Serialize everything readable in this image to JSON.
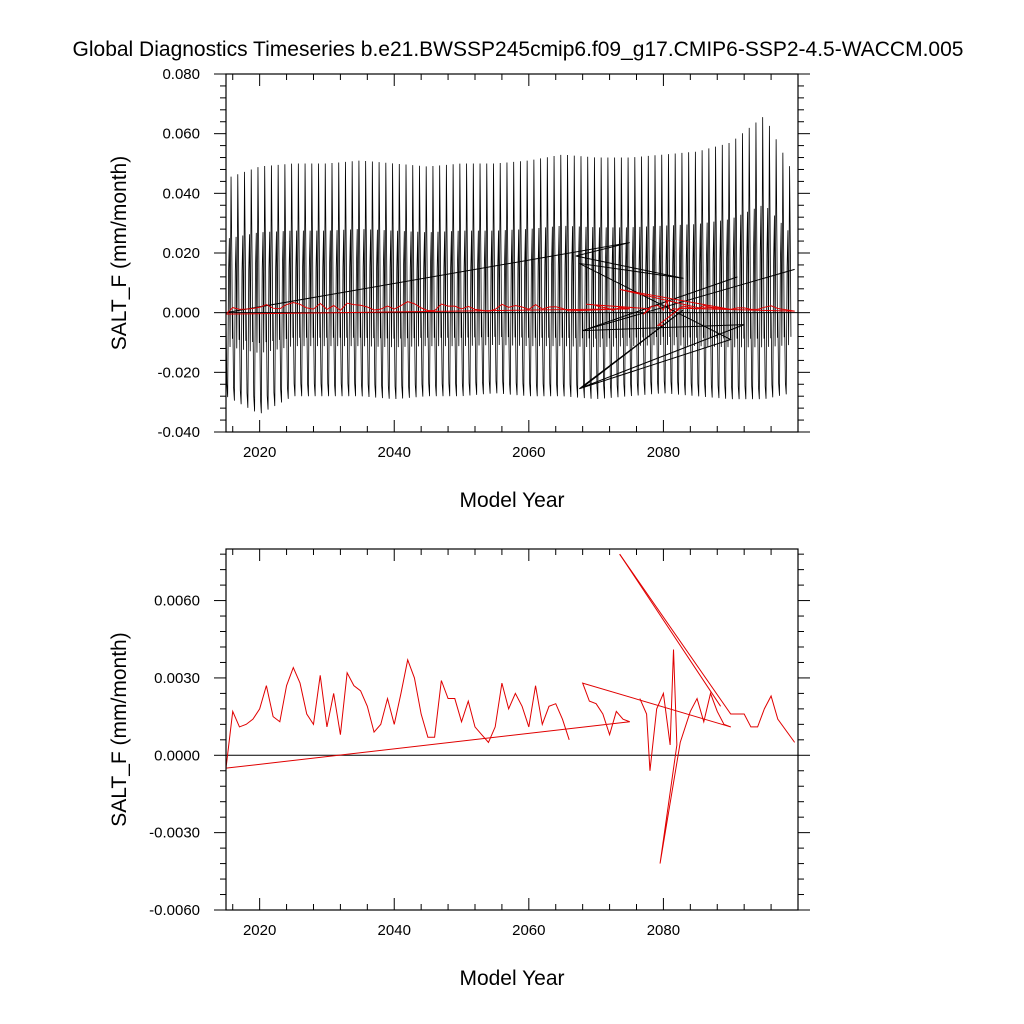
{
  "title": "Global Diagnostics Timeseries b.e21.BWSSP245cmip6.f09_g17.CMIP6-SSP2-4.5-WACCM.005",
  "colors": {
    "monthly": "#000000",
    "annual": "#e00000",
    "zero_line": "#000000"
  },
  "chart_data": [
    {
      "type": "line",
      "xlabel": "Model Year",
      "ylabel": "SALT_F (mm/month)",
      "xlim": [
        2015,
        2100
      ],
      "ylim": [
        -0.04,
        0.08
      ],
      "xticks": [
        2020,
        2040,
        2060,
        2080
      ],
      "xtick_labels": [
        "2020",
        "2040",
        "2060",
        "2080"
      ],
      "yticks": [
        -0.04,
        -0.02,
        0.0,
        0.02,
        0.04,
        0.06,
        0.08
      ],
      "ytick_labels": [
        "-0.040",
        "-0.020",
        "0.000",
        "0.020",
        "0.040",
        "0.060",
        "0.080"
      ],
      "grid": false,
      "reference_line_y": 0.0,
      "monthly_envelope": {
        "x": [
          2015,
          2020,
          2025,
          2030,
          2035,
          2040,
          2045,
          2050,
          2055,
          2060,
          2065,
          2070,
          2075,
          2080,
          2085,
          2090,
          2095,
          2099
        ],
        "max": [
          0.045,
          0.049,
          0.05,
          0.05,
          0.051,
          0.05,
          0.049,
          0.05,
          0.05,
          0.051,
          0.053,
          0.052,
          0.052,
          0.053,
          0.054,
          0.057,
          0.066,
          0.048
        ],
        "min": [
          -0.028,
          -0.034,
          -0.028,
          -0.028,
          -0.028,
          -0.029,
          -0.028,
          -0.028,
          -0.027,
          -0.028,
          -0.028,
          -0.029,
          -0.028,
          -0.027,
          -0.028,
          -0.029,
          -0.029,
          -0.027
        ]
      },
      "series": [
        {
          "kind": "monthly",
          "x": [
            2015.0,
            2075.0,
            2067.0,
            2083.0,
            2067.5,
            2090.0,
            2067.5,
            2083.0,
            2068.0,
            2092.0,
            2068.0,
            2091.0,
            2068.0,
            2099.5
          ],
          "y": [
            0.0,
            0.0235,
            0.019,
            0.0115,
            0.0165,
            -0.009,
            -0.0255,
            0.001,
            -0.025,
            -0.004,
            -0.006,
            0.012,
            -0.006,
            0.0145
          ]
        },
        {
          "kind": "annual",
          "x": [
            2015.0,
            2016,
            2017,
            2018,
            2019,
            2020,
            2021,
            2022,
            2023,
            2024,
            2025,
            2026,
            2027,
            2028,
            2029,
            2030,
            2031,
            2032,
            2033,
            2034,
            2035,
            2036,
            2037,
            2038,
            2039,
            2040,
            2041,
            2042,
            2043,
            2044,
            2045,
            2046,
            2047,
            2048,
            2049,
            2050,
            2051,
            2052,
            2053,
            2054,
            2055,
            2056,
            2057,
            2058,
            2059,
            2060,
            2061,
            2062,
            2063,
            2064,
            2065,
            2066,
            2075.0,
            2073.5,
            2072.5,
            2071.5,
            2070.5,
            2069.5,
            2068.5,
            2078.0,
            2077.0,
            2078.2,
            2079.2,
            2080.0,
            2080.5,
            2081.0,
            2081.5,
            2082.0,
            2083.0,
            2085.0,
            2086.0,
            2087.5,
            2088.5,
            2090.0,
            2073.5,
            2085.5,
            2087.0,
            2090.0,
            2091.0,
            2092.0,
            2093.0,
            2094.0,
            2095.0,
            2096.0,
            2097.0,
            2099.5
          ],
          "y": [
            -0.0005,
            0.0017,
            0.0011,
            0.0012,
            0.0014,
            0.0018,
            0.0027,
            0.0015,
            0.0013,
            0.0027,
            0.0034,
            0.0028,
            0.0016,
            0.0012,
            0.0031,
            0.0011,
            0.0024,
            0.0008,
            0.0032,
            0.0027,
            0.0025,
            0.0019,
            0.0009,
            0.0012,
            0.0022,
            0.0012,
            0.0024,
            0.0037,
            0.003,
            0.0016,
            0.0007,
            0.0007,
            0.0029,
            0.0022,
            0.0022,
            0.0013,
            0.0021,
            0.0011,
            0.0008,
            0.0005,
            0.0011,
            0.0028,
            0.0018,
            0.0024,
            0.0019,
            0.0011,
            0.0027,
            0.0012,
            0.0019,
            0.002,
            0.0014,
            0.0006,
            0.0013,
            0.0017,
            0.0008,
            0.0016,
            0.002,
            0.0027,
            0.0028,
            0.0013,
            -0.0006,
            0.0021,
            0.0024,
            0.0009,
            0.004,
            0.0004,
            0.0014,
            0.0011,
            0.0022,
            0.0012,
            0.0024,
            0.0015,
            0.0016,
            0.0011,
            0.0078,
            0.0015,
            0.0018,
            0.0011,
            0.0016,
            0.0016,
            0.0011,
            0.0011,
            0.0018,
            0.0023,
            0.0014,
            0.0005
          ]
        },
        {
          "kind": "annual",
          "x": [
            2015.0,
            2075.0
          ],
          "y": [
            -0.0005,
            0.0013
          ]
        },
        {
          "kind": "annual",
          "x": [
            2080.0,
            2079.2,
            2082.5,
            2099.5
          ],
          "y": [
            -0.0042,
            -0.0042,
            0.0015,
            0.0005
          ]
        }
      ]
    },
    {
      "type": "line",
      "xlabel": "Model Year",
      "ylabel": "SALT_F (mm/month)",
      "xlim": [
        2015,
        2100
      ],
      "ylim": [
        -0.006,
        0.008
      ],
      "xticks": [
        2020,
        2040,
        2060,
        2080
      ],
      "xtick_labels": [
        "2020",
        "2040",
        "2060",
        "2080"
      ],
      "yticks": [
        -0.006,
        -0.003,
        0.0,
        0.003,
        0.006
      ],
      "ytick_labels": [
        "-0.0060",
        "-0.0030",
        "0.0000",
        "0.0030",
        "0.0060"
      ],
      "grid": false,
      "reference_line_y": 0.0,
      "series": [
        {
          "kind": "annual",
          "x": [
            2015.0,
            2016,
            2017,
            2018,
            2019,
            2020,
            2021,
            2022,
            2023,
            2024,
            2025,
            2026,
            2027,
            2028,
            2029,
            2030,
            2031,
            2032,
            2033,
            2034,
            2035,
            2036,
            2037,
            2038,
            2039,
            2040,
            2041,
            2042,
            2043,
            2044,
            2045,
            2046,
            2047,
            2048,
            2049,
            2050,
            2051,
            2052,
            2053,
            2054,
            2055,
            2056,
            2057,
            2058,
            2059,
            2060,
            2061,
            2062,
            2063,
            2064,
            2065,
            2066
          ],
          "y": [
            -0.0005,
            0.0017,
            0.0011,
            0.0012,
            0.0014,
            0.0018,
            0.0027,
            0.0015,
            0.0013,
            0.0027,
            0.0034,
            0.0028,
            0.0016,
            0.0012,
            0.0031,
            0.0011,
            0.0024,
            0.0008,
            0.0032,
            0.0027,
            0.0025,
            0.0019,
            0.0009,
            0.0012,
            0.0022,
            0.0012,
            0.0024,
            0.0037,
            0.003,
            0.0016,
            0.0007,
            0.0007,
            0.0029,
            0.0022,
            0.0022,
            0.0013,
            0.0021,
            0.0011,
            0.0008,
            0.0005,
            0.0011,
            0.0028,
            0.0018,
            0.0024,
            0.0019,
            0.0011,
            0.0027,
            0.0012,
            0.0019,
            0.002,
            0.0014,
            0.0006
          ]
        },
        {
          "kind": "annual",
          "x": [
            2015.0,
            2075.0,
            2074.0,
            2073.0,
            2072.0,
            2071.0,
            2070.0,
            2069.0,
            2068.0,
            2090.0
          ],
          "y": [
            -0.0005,
            0.0013,
            0.0014,
            0.0017,
            0.0008,
            0.0016,
            0.002,
            0.0021,
            0.0028,
            0.0011
          ]
        },
        {
          "kind": "annual",
          "x": [
            2076.5,
            2077.5,
            2078.0,
            2079.0,
            2080.0,
            2080.5,
            2081.0,
            2081.5,
            2082.0,
            2079.5,
            2082.5,
            2084.0,
            2085.0,
            2086.0,
            2087.0,
            2088.0,
            2089.0,
            2090.0
          ],
          "y": [
            0.0022,
            0.0016,
            -0.0006,
            0.0018,
            0.0024,
            0.0014,
            0.0004,
            0.0041,
            0.0004,
            -0.0042,
            0.0005,
            0.0017,
            0.0022,
            0.0013,
            0.0024,
            0.0017,
            0.0012,
            0.0011
          ]
        },
        {
          "kind": "annual",
          "x": [
            2073.5,
            2090.0,
            2092.0,
            2093.0,
            2094.0,
            2095.0,
            2096.0,
            2097.0,
            2099.5
          ],
          "y": [
            0.0078,
            0.0016,
            0.0016,
            0.0011,
            0.0011,
            0.0018,
            0.0023,
            0.0014,
            0.0005
          ]
        },
        {
          "kind": "annual",
          "x": [
            2073.5,
            2088.5
          ],
          "y": [
            0.0078,
            0.0019
          ]
        }
      ]
    }
  ]
}
